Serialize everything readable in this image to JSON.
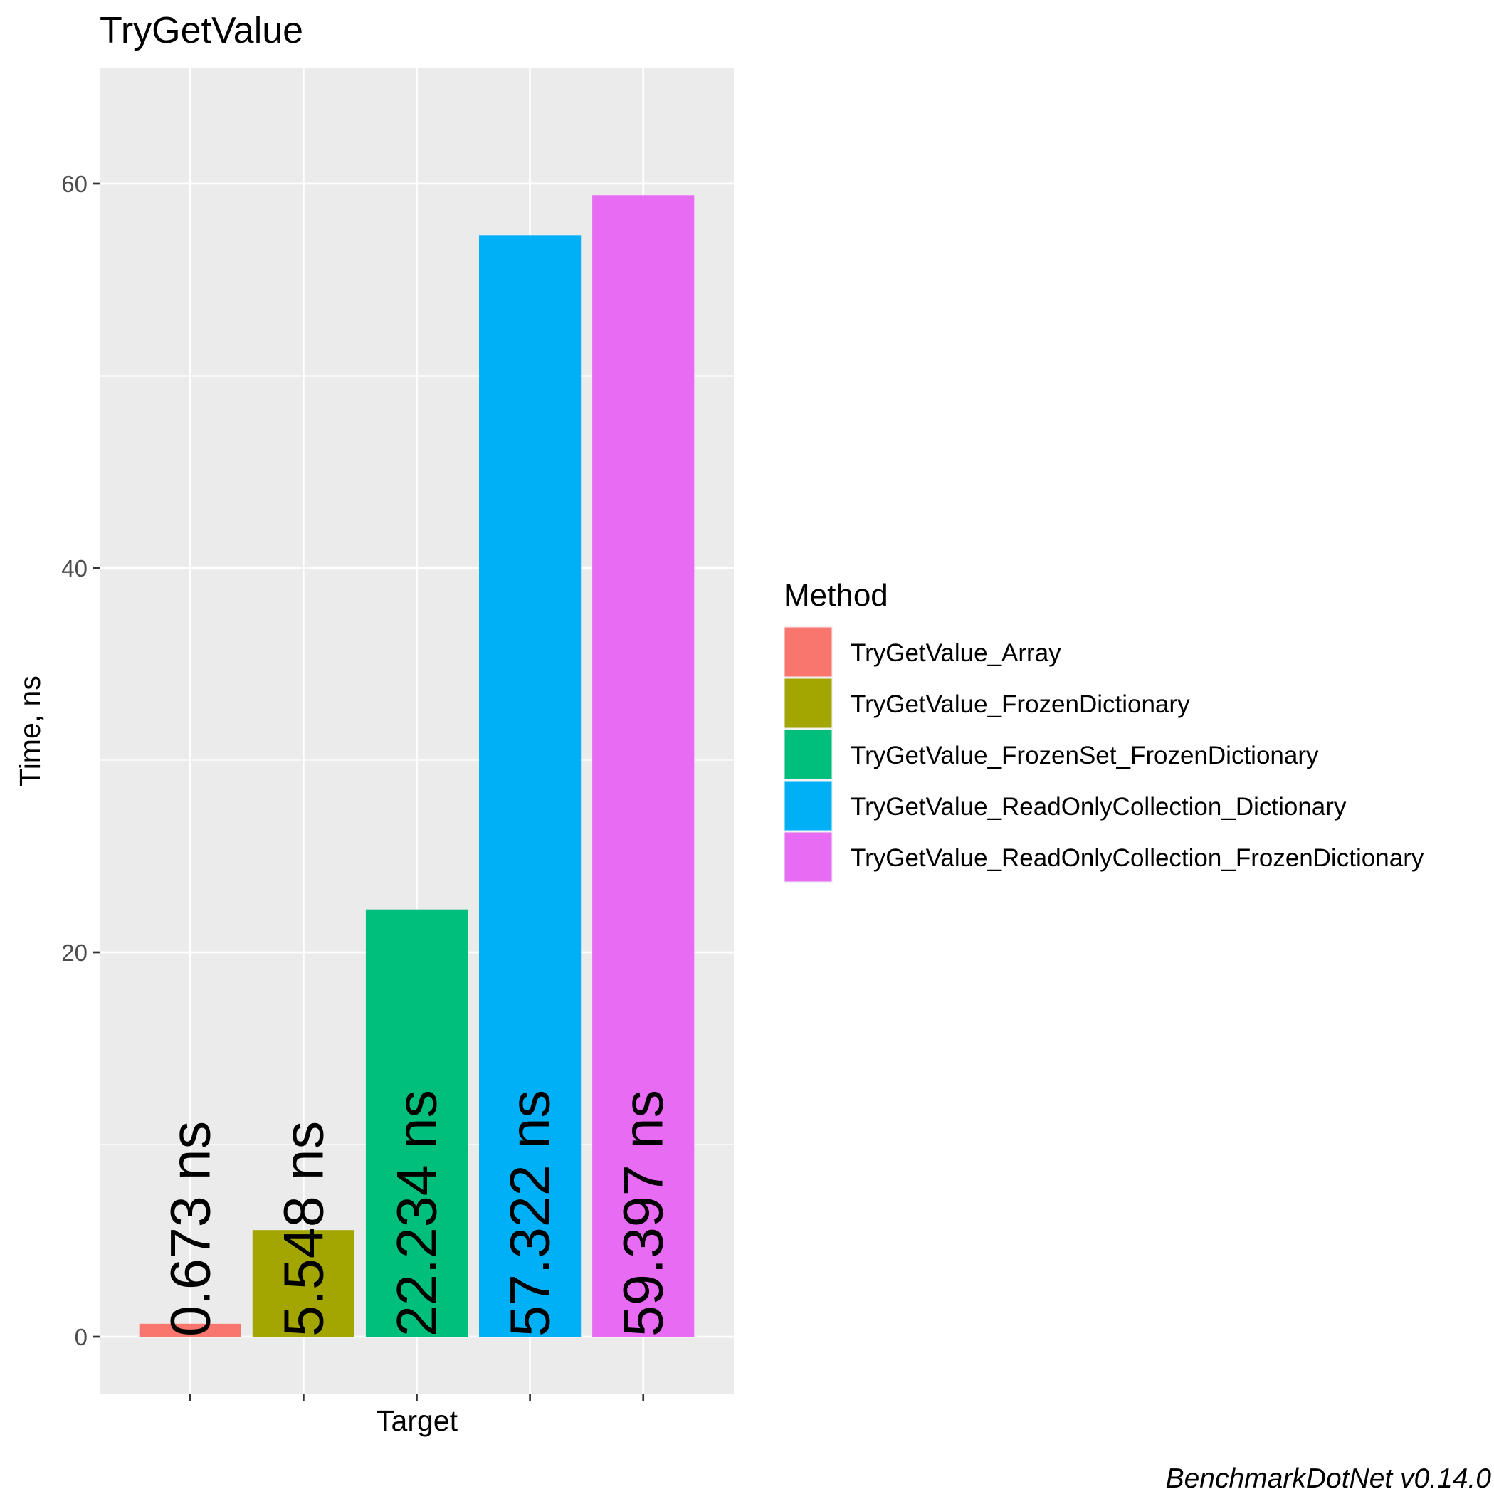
{
  "chart_data": {
    "type": "bar",
    "title": "TryGetValue",
    "xlabel": "Target",
    "ylabel": "Time, ns",
    "ylim": [
      -3,
      66
    ],
    "yticks": [
      0,
      20,
      40,
      60
    ],
    "grid": true,
    "legend_title": "Method",
    "legend_position": "right",
    "caption": "BenchmarkDotNet v0.14.0",
    "series": [
      {
        "name": "TryGetValue_Array",
        "value": 0.673,
        "label": "0.673 ns",
        "color": "#F8766D"
      },
      {
        "name": "TryGetValue_FrozenDictionary",
        "value": 5.548,
        "label": "5.548 ns",
        "color": "#A3A500"
      },
      {
        "name": "TryGetValue_FrozenSet_FrozenDictionary",
        "value": 22.234,
        "label": "22.234 ns",
        "color": "#00BF7D"
      },
      {
        "name": "TryGetValue_ReadOnlyCollection_Dictionary",
        "value": 57.322,
        "label": "57.322 ns",
        "color": "#00B0F6"
      },
      {
        "name": "TryGetValue_ReadOnlyCollection_FrozenDictionary",
        "value": 59.397,
        "label": "59.397 ns",
        "color": "#E76BF3"
      }
    ]
  }
}
